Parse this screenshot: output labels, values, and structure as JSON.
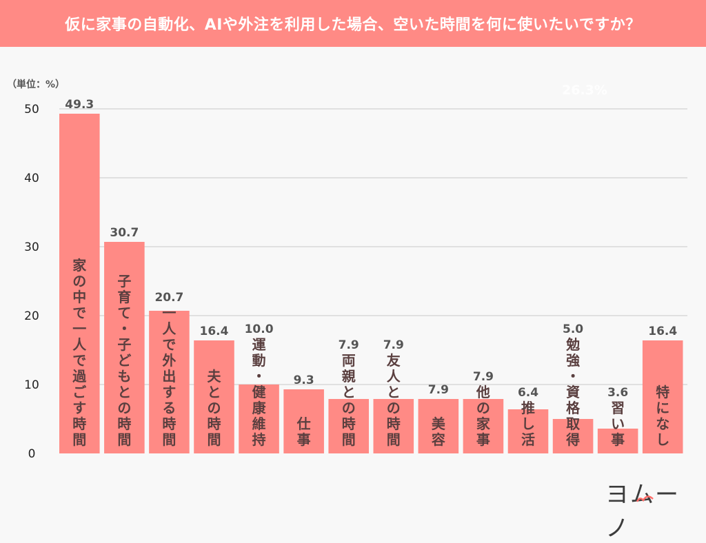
{
  "header": {
    "title": "仮に家事の自動化、AIや外注を利用した場合、空いた時間を何に使いたいですか？"
  },
  "unit_label": "（単位：%）",
  "faint_annotation": "26.3%",
  "logo": {
    "text": "ヨムーノ",
    "icon": "yomuno-logo-icon"
  },
  "colors": {
    "bar": "#ff8a85",
    "header_bg": "#ff8a85",
    "category_text": "#5a3f3f",
    "value_text": "#555555",
    "grid": "#d8d8d8"
  },
  "chart_data": {
    "type": "bar",
    "title": "仮に家事の自動化、AIや外注を利用した場合、空いた時間を何に使いたいですか？",
    "xlabel": "",
    "ylabel": "（単位：%）",
    "ylim": [
      0,
      50
    ],
    "yticks": [
      0,
      10,
      20,
      30,
      40,
      50
    ],
    "grid": true,
    "legend": "none",
    "categories": [
      "家の中で一人で過ごす時間",
      "子育て・子どもとの時間",
      "一人で外出する時間",
      "夫との時間",
      "運動・健康維持",
      "仕事",
      "両親との時間",
      "友人との時間",
      "美容",
      "他の家事",
      "推し活",
      "勉強・資格取得",
      "習い事",
      "特になし"
    ],
    "values": [
      49.3,
      30.7,
      20.7,
      16.4,
      10.0,
      9.3,
      7.9,
      7.9,
      7.9,
      7.9,
      6.4,
      5.0,
      3.6,
      16.4
    ],
    "value_labels": [
      "49.3",
      "30.7",
      "20.7",
      "16.4",
      "10.0",
      "9.3",
      "7.9",
      "7.9",
      "7.9",
      "7.9",
      "6.4",
      "5.0",
      "3.6",
      "16.4"
    ]
  }
}
